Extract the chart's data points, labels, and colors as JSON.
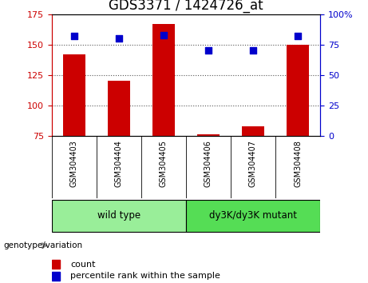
{
  "title": "GDS3371 / 1424726_at",
  "samples": [
    "GSM304403",
    "GSM304404",
    "GSM304405",
    "GSM304406",
    "GSM304407",
    "GSM304408"
  ],
  "counts": [
    142,
    120,
    167,
    76,
    83,
    150
  ],
  "percentiles": [
    82,
    80,
    83,
    70,
    70,
    82
  ],
  "ylim_left": [
    75,
    175
  ],
  "ylim_right": [
    0,
    100
  ],
  "yticks_left": [
    75,
    100,
    125,
    150,
    175
  ],
  "yticks_right": [
    0,
    25,
    50,
    75,
    100
  ],
  "ytick_labels_right": [
    "0",
    "25",
    "50",
    "75",
    "100%"
  ],
  "bar_color": "#cc0000",
  "scatter_color": "#0000cc",
  "groups": [
    {
      "label": "wild type",
      "indices": [
        0,
        1,
        2
      ],
      "color": "#99ee99"
    },
    {
      "label": "dy3K/dy3K mutant",
      "indices": [
        3,
        4,
        5
      ],
      "color": "#55dd55"
    }
  ],
  "group_label_prefix": "genotype/variation",
  "legend_count_label": "count",
  "legend_percentile_label": "percentile rank within the sample",
  "bar_width": 0.5,
  "plot_bg_color": "#d8d8d8",
  "dotted_line_color": "#555555",
  "title_fontsize": 12,
  "tick_label_fontsize": 8,
  "sample_fontsize": 7
}
